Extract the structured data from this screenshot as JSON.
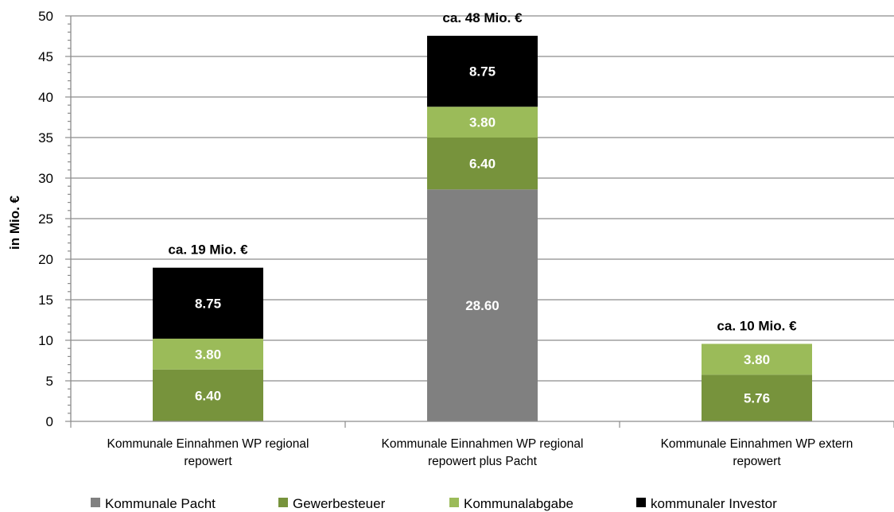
{
  "chart_data": {
    "type": "bar",
    "stacked": true,
    "ylabel": "in Mio. €",
    "xlabel": "",
    "ylim": [
      0,
      50
    ],
    "yticks": [
      0,
      5,
      10,
      15,
      20,
      25,
      30,
      35,
      40,
      45,
      50
    ],
    "grid": true,
    "legend_position": "bottom",
    "categories": [
      [
        "Kommunale Einnahmen WP regional",
        "repowert"
      ],
      [
        "Kommunale Einnahmen WP regional",
        "repowert plus Pacht"
      ],
      [
        "Kommunale Einnahmen WP extern",
        "repowert"
      ]
    ],
    "series": [
      {
        "name": "Kommunale Pacht",
        "color": "#808080",
        "values": [
          0,
          28.6,
          0
        ],
        "labels": [
          "",
          "28.60",
          ""
        ]
      },
      {
        "name": "Gewerbesteuer",
        "color": "#77933c",
        "values": [
          6.4,
          6.4,
          5.76
        ],
        "labels": [
          "6.40",
          "6.40",
          "5.76"
        ]
      },
      {
        "name": "Kommunalabgabe",
        "color": "#9bbb59",
        "values": [
          3.8,
          3.8,
          3.8
        ],
        "labels": [
          "3.80",
          "3.80",
          "3.80"
        ]
      },
      {
        "name": "kommunaler Investor",
        "color": "#000000",
        "values": [
          8.75,
          8.75,
          0
        ],
        "labels": [
          "8.75",
          "8.75",
          ""
        ]
      }
    ],
    "totals": [
      "ca. 19 Mio. €",
      "ca. 48 Mio. €",
      "ca. 10 Mio. €"
    ]
  }
}
